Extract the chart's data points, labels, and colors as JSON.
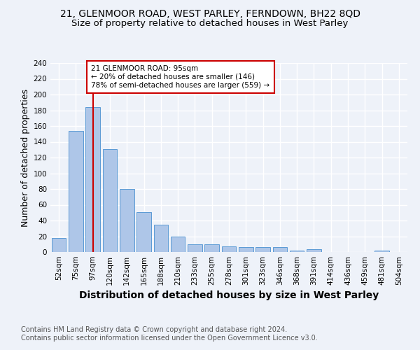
{
  "title_line1": "21, GLENMOOR ROAD, WEST PARLEY, FERNDOWN, BH22 8QD",
  "title_line2": "Size of property relative to detached houses in West Parley",
  "xlabel": "Distribution of detached houses by size in West Parley",
  "ylabel": "Number of detached properties",
  "categories": [
    "52sqm",
    "75sqm",
    "97sqm",
    "120sqm",
    "142sqm",
    "165sqm",
    "188sqm",
    "210sqm",
    "233sqm",
    "255sqm",
    "278sqm",
    "301sqm",
    "323sqm",
    "346sqm",
    "368sqm",
    "391sqm",
    "414sqm",
    "436sqm",
    "459sqm",
    "481sqm",
    "504sqm"
  ],
  "values": [
    18,
    154,
    184,
    131,
    80,
    51,
    35,
    20,
    10,
    10,
    7,
    6,
    6,
    6,
    2,
    4,
    0,
    0,
    0,
    2,
    0
  ],
  "bar_color": "#aec6e8",
  "bar_edge_color": "#5b9bd5",
  "vline_x_index": 2,
  "vline_color": "#cc0000",
  "annotation_text": "21 GLENMOOR ROAD: 95sqm\n← 20% of detached houses are smaller (146)\n78% of semi-detached houses are larger (559) →",
  "annotation_box_color": "#ffffff",
  "annotation_box_edge_color": "#cc0000",
  "ylim": [
    0,
    240
  ],
  "yticks": [
    0,
    20,
    40,
    60,
    80,
    100,
    120,
    140,
    160,
    180,
    200,
    220,
    240
  ],
  "footnote_line1": "Contains HM Land Registry data © Crown copyright and database right 2024.",
  "footnote_line2": "Contains public sector information licensed under the Open Government Licence v3.0.",
  "bg_color": "#eef2f9",
  "grid_color": "#ffffff",
  "title_fontsize": 10,
  "subtitle_fontsize": 9.5,
  "axis_label_fontsize": 9,
  "tick_fontsize": 7.5,
  "footnote_fontsize": 7
}
